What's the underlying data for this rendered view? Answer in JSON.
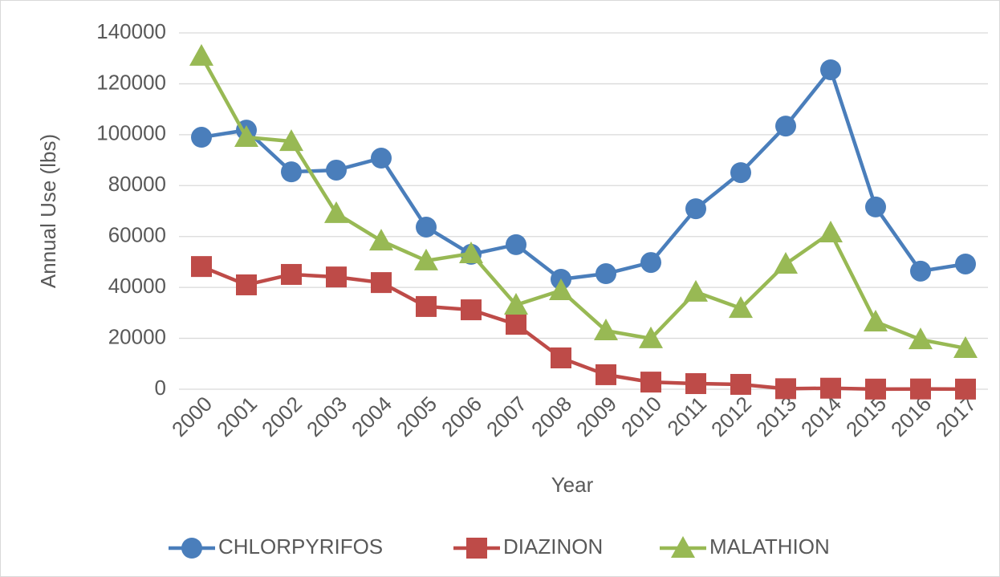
{
  "chart_data": {
    "type": "line",
    "x_label": "Year",
    "y_label": "Annual Use (lbs)",
    "categories": [
      "2000",
      "2001",
      "2002",
      "2003",
      "2004",
      "2005",
      "2006",
      "2007",
      "2008",
      "2009",
      "2010",
      "2011",
      "2012",
      "2013",
      "2014",
      "2015",
      "2016",
      "2017"
    ],
    "series": [
      {
        "name": "CHLORPYRIFOS",
        "color": "#4a7ebb",
        "marker": "circle",
        "values": [
          99000,
          101800,
          85400,
          86100,
          90800,
          63700,
          53000,
          56800,
          43200,
          45400,
          49800,
          70900,
          85100,
          103400,
          125500,
          71600,
          46400,
          49200
        ]
      },
      {
        "name": "DIAZINON",
        "color": "#be4b48",
        "marker": "square",
        "values": [
          48200,
          41000,
          45100,
          44100,
          41900,
          32500,
          31200,
          25500,
          12300,
          5700,
          2800,
          2200,
          1900,
          200,
          400,
          50,
          100,
          50
        ]
      },
      {
        "name": "MALATHION",
        "color": "#98b954",
        "marker": "triangle",
        "values": [
          130900,
          99000,
          97400,
          69100,
          58300,
          50500,
          53300,
          33100,
          38800,
          23000,
          19900,
          38200,
          31800,
          49200,
          61500,
          26500,
          19500,
          16100
        ]
      }
    ],
    "ylim": [
      0,
      140000
    ],
    "yticks": [
      0,
      20000,
      40000,
      60000,
      80000,
      100000,
      120000,
      140000
    ],
    "grid": true,
    "legend": "bottom"
  }
}
